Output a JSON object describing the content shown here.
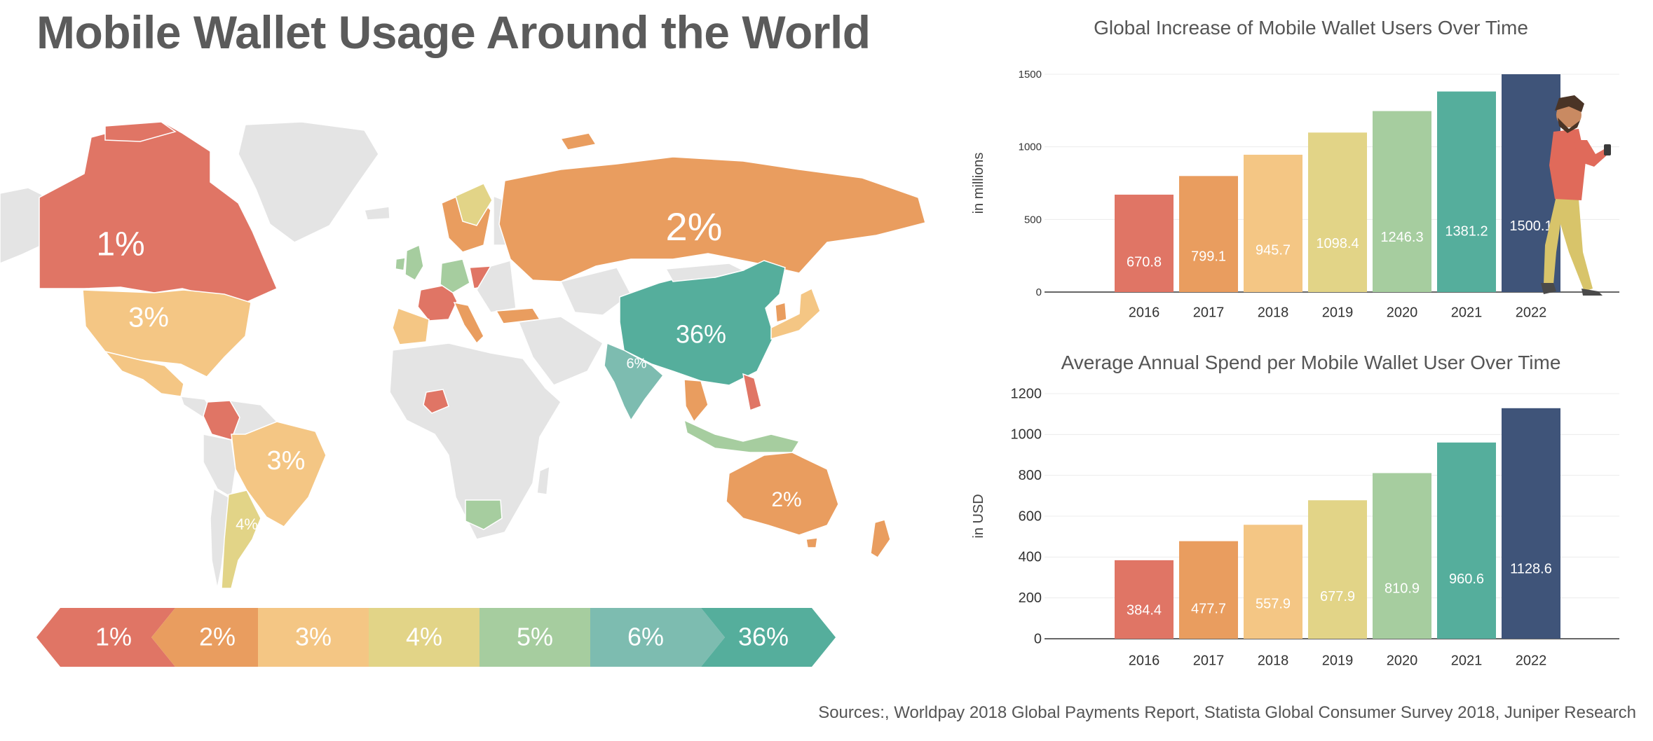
{
  "title": "Mobile Wallet Usage Around the World",
  "sources": "Sources:, Worldpay 2018 Global Payments Report, Statista Global Consumer Survey 2018, Juniper Research",
  "colors": {
    "c1": "#e07565",
    "c2": "#e99d5f",
    "c3": "#f4c684",
    "c4": "#e2d487",
    "c5": "#a6cd9f",
    "c6": "#7dbcb0",
    "c36": "#55ae9c",
    "navy": "#3f5479",
    "grey": "#e4e4e4"
  },
  "map_labels": [
    {
      "text": "1%",
      "region": "canada"
    },
    {
      "text": "3%",
      "region": "usa"
    },
    {
      "text": "2%",
      "region": "russia"
    },
    {
      "text": "36%",
      "region": "china"
    },
    {
      "text": "6%",
      "region": "india"
    },
    {
      "text": "3%",
      "region": "brazil"
    },
    {
      "text": "4%",
      "region": "argentina"
    },
    {
      "text": "2%",
      "region": "australia"
    }
  ],
  "legend": [
    "1%",
    "2%",
    "3%",
    "4%",
    "5%",
    "6%",
    "36%"
  ],
  "chart_data": [
    {
      "type": "bar",
      "title": "Global Increase of Mobile Wallet Users Over Time",
      "ylabel": "in millions",
      "xlabel": "",
      "categories": [
        "2016",
        "2017",
        "2018",
        "2019",
        "2020",
        "2021",
        "2022"
      ],
      "values": [
        670.8,
        799.1,
        945.7,
        1098.4,
        1246.3,
        1381.2,
        1500.1
      ],
      "ylim": [
        0,
        1500
      ],
      "yticks": [
        0,
        500,
        1000,
        1500
      ],
      "bar_colors": [
        "#e07565",
        "#e99d5f",
        "#f4c684",
        "#e2d487",
        "#a6cd9f",
        "#55ae9c",
        "#3f5479"
      ],
      "grid": true
    },
    {
      "type": "bar",
      "title": "Average Annual Spend per Mobile Wallet User Over Time",
      "ylabel": "in USD",
      "xlabel": "",
      "categories": [
        "2016",
        "2017",
        "2018",
        "2019",
        "2020",
        "2021",
        "2022"
      ],
      "values": [
        384.4,
        477.7,
        557.9,
        677.9,
        810.9,
        960.6,
        1128.6
      ],
      "ylim": [
        0,
        1200
      ],
      "yticks": [
        0,
        200,
        400,
        600,
        800,
        1000,
        1200
      ],
      "bar_colors": [
        "#e07565",
        "#e99d5f",
        "#f4c684",
        "#e2d487",
        "#a6cd9f",
        "#55ae9c",
        "#3f5479"
      ],
      "grid": true
    }
  ]
}
